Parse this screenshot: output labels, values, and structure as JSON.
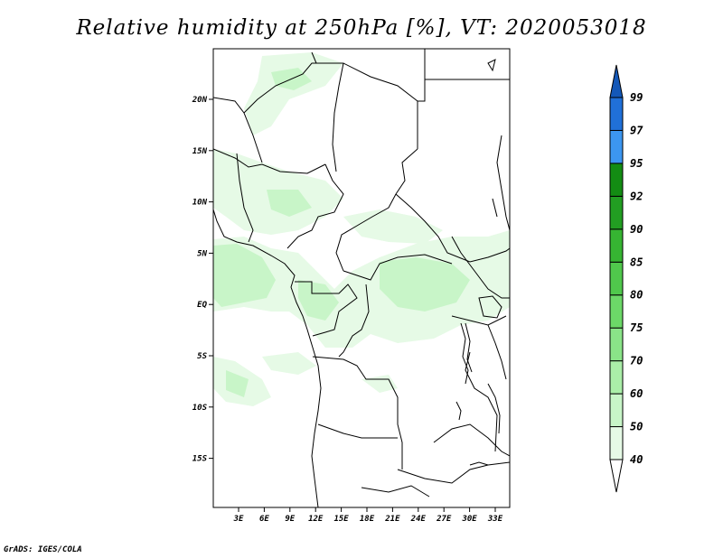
{
  "title": "Relative humidity at 250hPa [%], VT: 2020053018",
  "credit": "GrADS: IGES/COLA",
  "map": {
    "lat_ticks": [
      "20N",
      "15N",
      "10N",
      "5N",
      "EQ",
      "5S",
      "10S",
      "15S"
    ],
    "lon_ticks": [
      "3E",
      "6E",
      "9E",
      "12E",
      "15E",
      "18E",
      "21E",
      "24E",
      "27E",
      "30E",
      "33E"
    ]
  },
  "colorbar": {
    "levels": [
      "40",
      "50",
      "60",
      "70",
      "75",
      "80",
      "85",
      "90",
      "92",
      "95",
      "97",
      "99"
    ],
    "colors": [
      "#ffffff",
      "#e6fae6",
      "#c8f5c8",
      "#aaeea8",
      "#8ae488",
      "#6cd868",
      "#50c84c",
      "#36b432",
      "#229e22",
      "#138c13",
      "#3c96f0",
      "#2070d8",
      "#1458b8"
    ]
  }
}
